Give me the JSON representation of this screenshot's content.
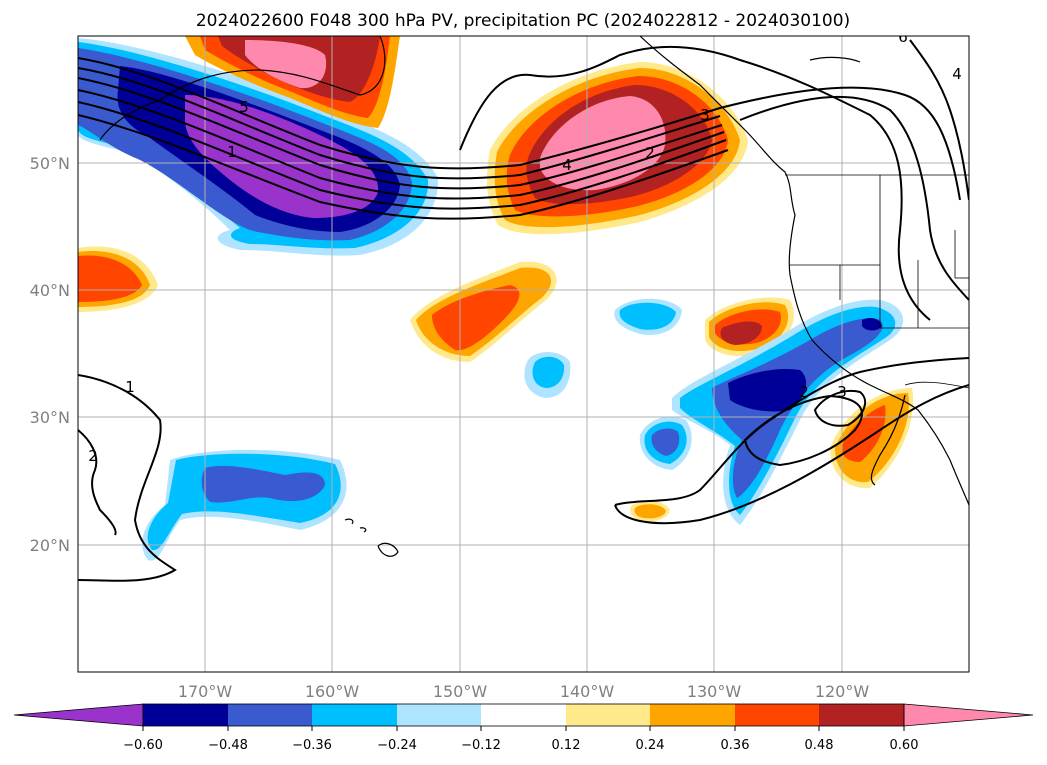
{
  "title": "2024022600 F048 300 hPa PV, precipitation PC (2024022812 - 2024030100)",
  "map": {
    "lon_range": [
      -180,
      -110
    ],
    "lat_range": [
      10,
      60
    ],
    "gridlines": true,
    "lon_ticks": [
      "170°W",
      "160°W",
      "150°W",
      "140°W",
      "130°W",
      "120°W"
    ],
    "lat_ticks": [
      "50°N",
      "40°N",
      "30°N",
      "20°N"
    ],
    "pv_contour_labels": [
      "1",
      "5",
      "4",
      "2",
      "3",
      "1",
      "2",
      "2",
      "3",
      "4",
      "6"
    ]
  },
  "colorbar": {
    "extend": "both",
    "ticks": [
      "−0.60",
      "−0.48",
      "−0.36",
      "−0.24",
      "−0.12",
      "0.12",
      "0.24",
      "0.36",
      "0.48",
      "0.60"
    ],
    "colors": {
      "lt_-0.60": "#9933cc",
      "-0.60_-0.48": "#000099",
      "-0.48_-0.36": "#3a5bd0",
      "-0.36_-0.24": "#00bfff",
      "-0.24_-0.12": "#aee4ff",
      "-0.12_0.12": "#ffffff",
      "0.12_0.24": "#ffe98a",
      "0.24_0.36": "#ffa500",
      "0.36_0.48": "#ff4500",
      "0.48_0.60": "#b22222",
      "gt_0.60": "#ff89ad"
    }
  }
}
